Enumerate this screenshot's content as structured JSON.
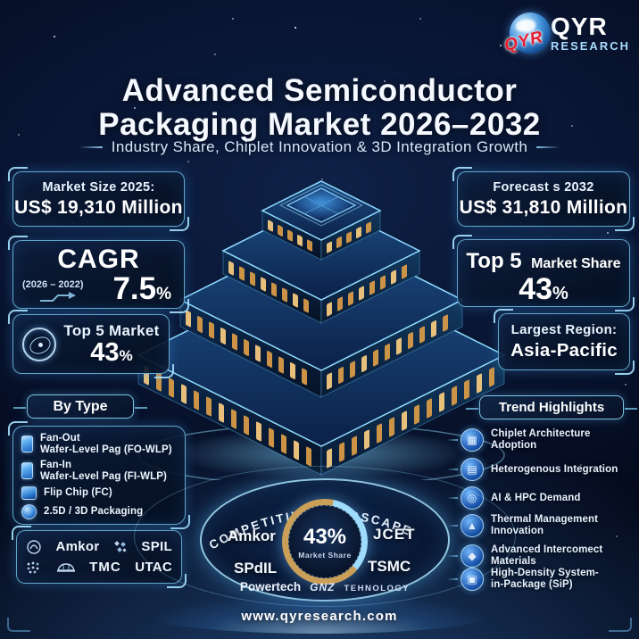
{
  "logo": {
    "overlay": "QYR",
    "name": "QYR",
    "sub": "RESEARCH"
  },
  "header": {
    "title_line1": "Advanced Semiconductor",
    "title_line2": "Packaging Market 2026–2032",
    "subtitle": "Industry Share, Chiplet Innovation & 3D Integration Growth"
  },
  "stats": {
    "market_size": {
      "label": "Market Size 2025:",
      "value": "US$ 19,310 Million"
    },
    "cagr": {
      "label": "CAGR",
      "range": "(2026 – 2022)",
      "value": "7.5",
      "unit": "%"
    },
    "top5_left": {
      "label": "Top 5 Market",
      "value": "43",
      "unit": "%"
    },
    "forecast": {
      "label": "Forecast s 2032",
      "value": "US$ 31,810 Million"
    },
    "top5_right": {
      "label_strong": "Top 5",
      "label_rest": "Market Share",
      "value": "43",
      "unit": "%"
    },
    "region": {
      "label": "Largest Region:",
      "value": "Asia-Pacific"
    }
  },
  "by_type": {
    "header": "By Type",
    "items": [
      {
        "line1": "Fan-Out",
        "line2": "Wafer-Level Pag (FO-WLP)"
      },
      {
        "line1": "Fan-In",
        "line2": "Wafer-Level Pag (FI-WLP)"
      },
      {
        "line1": "Flip Chip (FC)",
        "line2": ""
      },
      {
        "line1": "2.5D / 3D Packaging",
        "line2": ""
      }
    ]
  },
  "companies_box": {
    "row1_a": "Amkor",
    "row1_b": "SPIL",
    "row2_a": "TMC",
    "row2_b": "UTAC"
  },
  "trends": {
    "header": "Trend Highlights",
    "items": [
      {
        "label": "Chiplet Architecture Adoption",
        "glyph": "▦"
      },
      {
        "label": "Heterogenous Integration",
        "glyph": "▤"
      },
      {
        "label": "AI & HPC Demand",
        "glyph": "◎"
      },
      {
        "label": "Thermal Management Innovation",
        "glyph": "▲"
      },
      {
        "label": "Advanced Intercomect Materials",
        "glyph": "◆"
      },
      {
        "label": "High-Density System-in-Package (SiP)",
        "glyph": "▣"
      }
    ]
  },
  "competitive": {
    "title": "COMPETITIVE LANDSCAPE",
    "share_value": "43%",
    "share_label": "Market Share",
    "companies": [
      {
        "name": "Amkor"
      },
      {
        "name": "JCET"
      },
      {
        "name": "SPdIL"
      },
      {
        "name": "TSMC"
      }
    ],
    "bottom_left": "Powertech",
    "bottom_mid": "GNZ",
    "bottom_right": "TEHNOLOGY"
  },
  "footer": {
    "url": "www.qyresearch.com"
  },
  "colors": {
    "accent": "#7fd6ff",
    "brand_red": "#e81c2e",
    "gold": "#d9a54f",
    "background": "#081530"
  }
}
